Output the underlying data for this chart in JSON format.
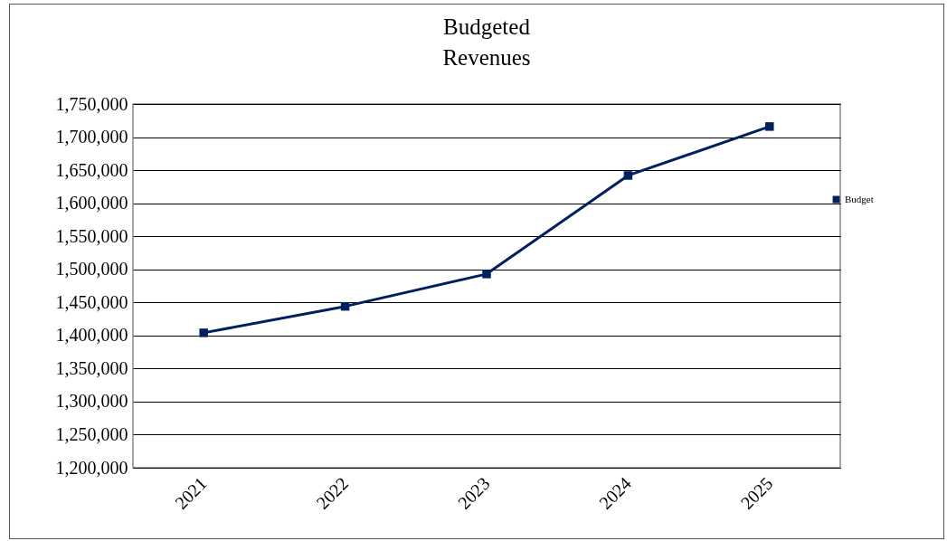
{
  "chart_data": {
    "type": "line",
    "title": "Budgeted Revenues",
    "categories": [
      "2021",
      "2022",
      "2023",
      "2024",
      "2025"
    ],
    "series": [
      {
        "name": "Budget",
        "color": "#002060",
        "values": [
          1404000,
          1444000,
          1493000,
          1642000,
          1716000
        ]
      }
    ],
    "ylim": [
      1200000,
      1750000
    ],
    "yticks": [
      {
        "value": 1200000,
        "label": "1,200,000"
      },
      {
        "value": 1250000,
        "label": "1,250,000"
      },
      {
        "value": 1300000,
        "label": "1,300,000"
      },
      {
        "value": 1350000,
        "label": "1,350,000"
      },
      {
        "value": 1400000,
        "label": "1,400,000"
      },
      {
        "value": 1450000,
        "label": "1,450,000"
      },
      {
        "value": 1500000,
        "label": "1,500,000"
      },
      {
        "value": 1550000,
        "label": "1,550,000"
      },
      {
        "value": 1600000,
        "label": "1,600,000"
      },
      {
        "value": 1650000,
        "label": "1,650,000"
      },
      {
        "value": 1700000,
        "label": "1,700,000"
      },
      {
        "value": 1750000,
        "label": "1,750,000"
      }
    ],
    "grid": "y",
    "legend": "right",
    "marker": "square",
    "line_style": "solid"
  }
}
